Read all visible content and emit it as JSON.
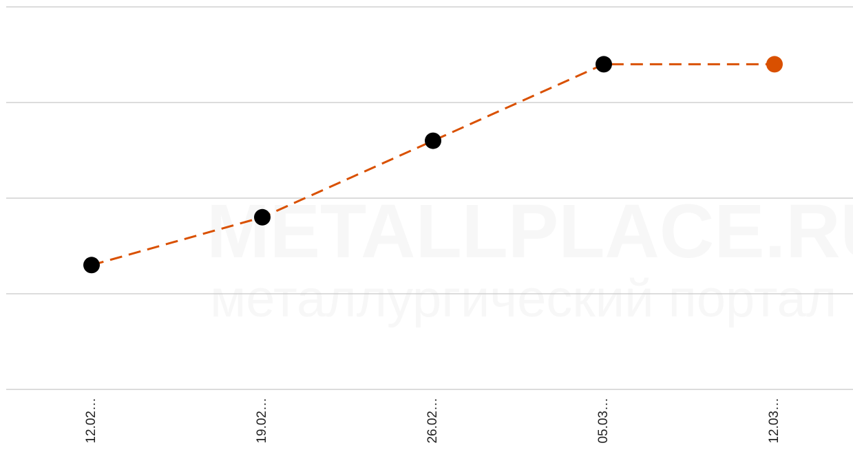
{
  "chart_data": {
    "type": "line",
    "watermark": {
      "title": "METALLPLACE.RU",
      "subtitle": "металлургический портал"
    },
    "categories": [
      "12.02…",
      "19.02…",
      "26.02…",
      "05.03…",
      "12.03…"
    ],
    "series": [
      {
        "values": [
          1.3,
          1.8,
          2.6,
          3.4,
          3.4
        ],
        "color": "#d95000",
        "point_colors": [
          "#000000",
          "#000000",
          "#000000",
          "#000000",
          "#d95000"
        ]
      }
    ],
    "ylim": [
      0,
      4
    ],
    "yticks": [
      0,
      1,
      2,
      3,
      4
    ],
    "grid": true,
    "show_ytick_labels": false,
    "dashed": true
  }
}
